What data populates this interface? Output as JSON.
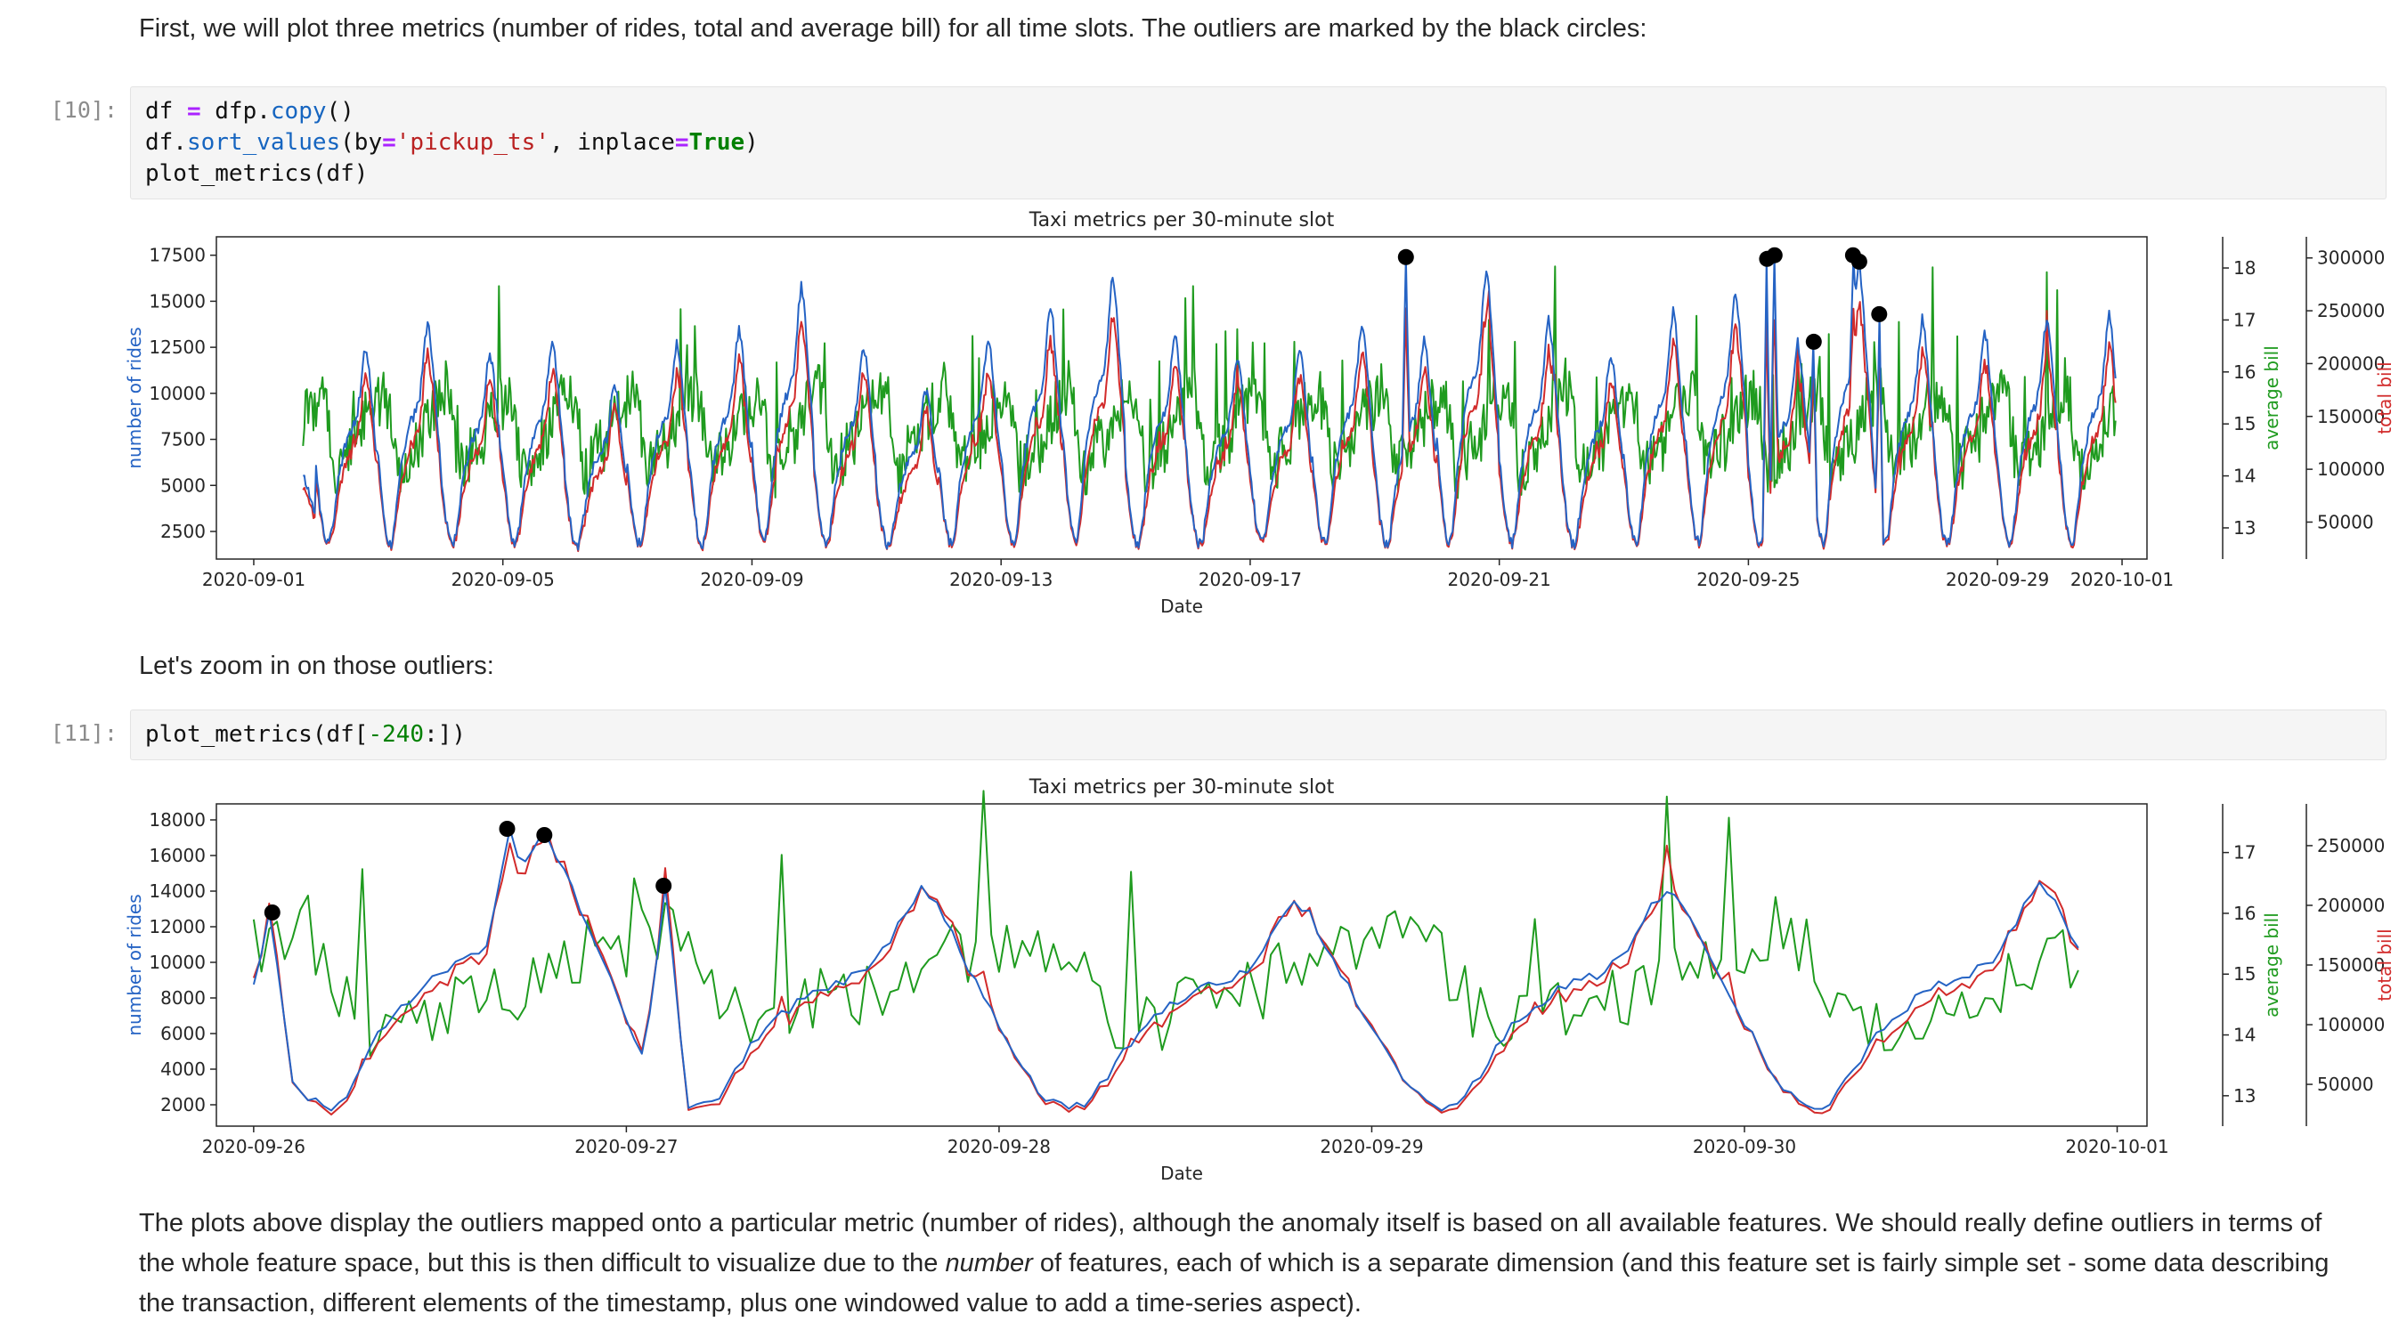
{
  "notebook": {
    "md1": "First, we will plot three metrics (number of rides, total and average bill) for all time slots. The outliers are marked by the black circles:",
    "md2": "Let's zoom in on those outliers:",
    "md3_segments": [
      {
        "text": "The plots above display the outliers mapped onto a particular metric (number of rides), although the anomaly itself is based on all available features. We should really define outliers in terms of the whole feature space, but this is then difficult to visualize due to the "
      },
      {
        "text": "number",
        "italic": true
      },
      {
        "text": " of features, each of which is a separate dimension (and this feature set is fairly simple set - some data describing the transaction, different elements of the timestamp, plus one windowed value to add a time-series aspect)."
      }
    ],
    "cells": [
      {
        "prompt": "[10]:",
        "lines": [
          [
            {
              "t": "df "
            },
            {
              "c": "op",
              "t": "="
            },
            {
              "t": " dfp."
            },
            {
              "c": "fn",
              "t": "copy"
            },
            {
              "t": "()"
            }
          ],
          [
            {
              "t": "df."
            },
            {
              "c": "fn",
              "t": "sort_values"
            },
            {
              "t": "(by"
            },
            {
              "c": "op",
              "t": "="
            },
            {
              "c": "str",
              "t": "'pickup_ts'"
            },
            {
              "t": ", inplace"
            },
            {
              "c": "op",
              "t": "="
            },
            {
              "c": "kw",
              "t": "True"
            },
            {
              "t": ")"
            }
          ],
          [
            {
              "t": "plot_metrics(df)"
            }
          ]
        ]
      },
      {
        "prompt": "[11]:",
        "lines": [
          [
            {
              "t": "plot_metrics(df["
            },
            {
              "c": "num",
              "t": "-240"
            },
            {
              "t": ":])"
            }
          ]
        ]
      }
    ]
  },
  "chart_data": {
    "type": "line",
    "generator": {
      "slots_per_day": 48,
      "slot_start": 38,
      "slot_end": 1435,
      "seed": 20200901,
      "rides_night_base": 1500,
      "rides_noise": 300,
      "rides_template_hourly": [
        0.4,
        0.28,
        0.16,
        0.08,
        0.04,
        0.03,
        0.08,
        0.18,
        0.3,
        0.38,
        0.44,
        0.5,
        0.55,
        0.58,
        0.6,
        0.63,
        0.68,
        0.78,
        0.92,
        1.0,
        0.93,
        0.8,
        0.66,
        0.52
      ],
      "rides_day_peaks": [
        5500,
        12500,
        13800,
        12200,
        13000,
        10500,
        12800,
        13500,
        15800,
        12500,
        10200,
        13000,
        14800,
        16400,
        13200,
        12000,
        12500,
        13800,
        12800,
        16800,
        14000,
        12200,
        14500,
        15500,
        12800,
        16000,
        14000,
        13500,
        14200,
        14300
      ],
      "avg_base": 13.4,
      "avg_amp": 2.4,
      "avg_noise": 0.55,
      "avg_spike_prob": 0.04,
      "avg_spike_amp": 2.4,
      "avg_clamp": [
        12.9,
        18.2
      ],
      "avg_template_hourly": [
        0.85,
        0.9,
        0.95,
        0.9,
        0.8,
        0.7,
        0.5,
        0.35,
        0.3,
        0.3,
        0.35,
        0.4,
        0.45,
        0.5,
        0.52,
        0.5,
        0.52,
        0.58,
        0.65,
        0.7,
        0.75,
        0.8,
        0.82,
        0.84
      ],
      "outliers": [
        {
          "day": 18.5,
          "value": 17400
        },
        {
          "day": 24.3,
          "value": 17300
        },
        {
          "day": 24.42,
          "value": 17500
        },
        {
          "day": 25.05,
          "value": 12800
        },
        {
          "day": 25.68,
          "value": 17500
        },
        {
          "day": 25.78,
          "value": 17150
        },
        {
          "day": 26.1,
          "value": 14300
        }
      ]
    },
    "charts": [
      {
        "title": "Taxi metrics per 30-minute slot",
        "xlabel": "Date",
        "x_range": [
          -0.6,
          30.4
        ],
        "slot_range": [
          38,
          1435
        ],
        "x_ticks": [
          {
            "day": 0,
            "label": "2020-09-01"
          },
          {
            "day": 4,
            "label": "2020-09-05"
          },
          {
            "day": 8,
            "label": "2020-09-09"
          },
          {
            "day": 12,
            "label": "2020-09-13"
          },
          {
            "day": 16,
            "label": "2020-09-17"
          },
          {
            "day": 20,
            "label": "2020-09-21"
          },
          {
            "day": 24,
            "label": "2020-09-25"
          },
          {
            "day": 28,
            "label": "2020-09-29"
          },
          {
            "day": 30,
            "label": "2020-10-01"
          }
        ],
        "axes": {
          "left": {
            "label": "number of rides",
            "color": "#2563c4",
            "ticks": [
              2500,
              5000,
              7500,
              10000,
              12500,
              15000,
              17500
            ],
            "range": [
              1000,
              18500
            ]
          },
          "right_avg": {
            "label": "average bill",
            "color": "#1f9b1f",
            "ticks": [
              13,
              14,
              15,
              16,
              17,
              18
            ],
            "range": [
              12.4,
              18.6
            ]
          },
          "right_total": {
            "label": "total bill",
            "color": "#d22b2b",
            "ticks": [
              50000,
              100000,
              150000,
              200000,
              250000,
              300000
            ],
            "range": [
              15000,
              320000
            ]
          }
        },
        "series": [
          {
            "name": "average bill",
            "metric": "avg",
            "axis": "right_avg",
            "color": "#1f9b1f"
          },
          {
            "name": "total bill",
            "metric": "total",
            "axis": "right_total",
            "color": "#d22b2b"
          },
          {
            "name": "number of rides",
            "metric": "rides",
            "axis": "left",
            "color": "#2563c4"
          }
        ]
      },
      {
        "title": "Taxi metrics per 30-minute slot",
        "xlabel": "Date",
        "x_range": [
          24.9,
          30.08
        ],
        "slot_range": [
          1200,
          1435
        ],
        "x_ticks": [
          {
            "day": 25,
            "label": "2020-09-26"
          },
          {
            "day": 26,
            "label": "2020-09-27"
          },
          {
            "day": 27,
            "label": "2020-09-28"
          },
          {
            "day": 28,
            "label": "2020-09-29"
          },
          {
            "day": 29,
            "label": "2020-09-30"
          },
          {
            "day": 30,
            "label": "2020-10-01"
          }
        ],
        "axes": {
          "left": {
            "label": "number of rides",
            "color": "#2563c4",
            "ticks": [
              2000,
              4000,
              6000,
              8000,
              10000,
              12000,
              14000,
              16000,
              18000
            ],
            "range": [
              800,
              18900
            ]
          },
          "right_avg": {
            "label": "average bill",
            "color": "#1f9b1f",
            "ticks": [
              13,
              14,
              15,
              16,
              17
            ],
            "range": [
              12.5,
              17.8
            ]
          },
          "right_total": {
            "label": "total bill",
            "color": "#d22b2b",
            "ticks": [
              50000,
              100000,
              150000,
              200000,
              250000
            ],
            "range": [
              15000,
              285000
            ]
          }
        },
        "series": [
          {
            "name": "average bill",
            "metric": "avg",
            "axis": "right_avg",
            "color": "#1f9b1f"
          },
          {
            "name": "total bill",
            "metric": "total",
            "axis": "right_total",
            "color": "#d22b2b"
          },
          {
            "name": "number of rides",
            "metric": "rides",
            "axis": "left",
            "color": "#2563c4"
          }
        ]
      }
    ]
  }
}
